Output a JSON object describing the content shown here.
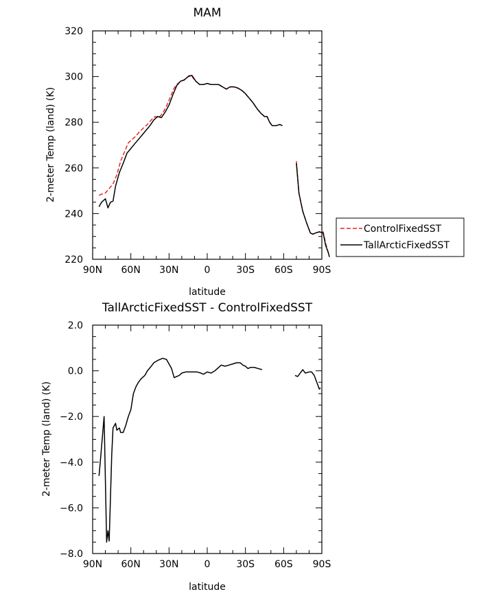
{
  "chart_data": [
    {
      "type": "line",
      "title": "MAM",
      "xlabel": "latitude",
      "ylabel": "2-meter Temp (land) (K)",
      "xlim": [
        90,
        -90
      ],
      "ylim": [
        220,
        320
      ],
      "xticks": [
        90,
        60,
        30,
        0,
        -30,
        -60,
        -90
      ],
      "xtick_labels": [
        "90N",
        "60N",
        "30N",
        "0",
        "30S",
        "60S",
        "90S"
      ],
      "yticks": [
        220,
        240,
        260,
        280,
        300,
        320
      ],
      "ytick_labels": [
        "220",
        "240",
        "260",
        "280",
        "300",
        "320"
      ],
      "legend": {
        "position": "right",
        "entries": [
          "ControlFixedSST",
          "TallArcticFixedSST"
        ]
      },
      "series": [
        {
          "name": "ControlFixedSST",
          "color": "#e8251f",
          "dash": true,
          "segments": [
            [
              [
                85,
                248
              ],
              [
                83,
                248.5
              ],
              [
                80,
                249
              ],
              [
                77,
                251
              ],
              [
                74,
                253
              ],
              [
                71,
                257
              ],
              [
                68,
                263
              ],
              [
                65,
                267
              ],
              [
                62,
                271
              ],
              [
                59,
                272.5
              ],
              [
                56,
                274
              ],
              [
                53,
                276
              ],
              [
                50,
                277.5
              ],
              [
                47,
                279
              ],
              [
                44,
                281
              ],
              [
                41,
                282.5
              ],
              [
                38,
                282
              ],
              [
                35,
                284
              ],
              [
                32,
                287
              ],
              [
                29,
                291
              ],
              [
                26,
                295
              ],
              [
                23,
                297
              ],
              [
                20,
                298
              ],
              [
                17,
                299
              ],
              [
                14,
                300.5
              ],
              [
                12,
                300
              ],
              [
                9,
                298
              ],
              [
                6,
                296.5
              ],
              [
                3,
                296.5
              ],
              [
                0,
                297
              ],
              [
                -3,
                296.5
              ],
              [
                -6,
                296.5
              ],
              [
                -9,
                296.5
              ],
              [
                -12,
                295.5
              ],
              [
                -15,
                294.5
              ],
              [
                -18,
                295.5
              ],
              [
                -21,
                295.5
              ],
              [
                -24,
                295
              ],
              [
                -27,
                294
              ],
              [
                -30,
                292.5
              ],
              [
                -33,
                290.5
              ],
              [
                -36,
                288.5
              ],
              [
                -39,
                286
              ],
              [
                -42,
                284
              ],
              [
                -45,
                282.5
              ],
              [
                -47,
                282.5
              ],
              [
                -49,
                280
              ],
              [
                -51,
                278.5
              ],
              [
                -54,
                278.5
              ],
              [
                -57,
                279
              ],
              [
                -59,
                278.5
              ]
            ],
            [
              [
                -70,
                263
              ],
              [
                -72,
                249
              ],
              [
                -75,
                241
              ],
              [
                -78,
                236
              ],
              [
                -81,
                231.5
              ],
              [
                -83,
                231
              ],
              [
                -85,
                231.5
              ],
              [
                -88,
                232
              ],
              [
                -91,
                232
              ],
              [
                -93,
                227
              ],
              [
                -95,
                223
              ],
              [
                -96,
                222
              ]
            ]
          ]
        },
        {
          "name": "TallArcticFixedSST",
          "color": "#000000",
          "dash": false,
          "segments": [
            [
              [
                85,
                243
              ],
              [
                83,
                245
              ],
              [
                80,
                246.5
              ],
              [
                78,
                242.5
              ],
              [
                76,
                245
              ],
              [
                74,
                245.5
              ],
              [
                72,
                252
              ],
              [
                69,
                258
              ],
              [
                66,
                262
              ],
              [
                63,
                266.5
              ],
              [
                60,
                268.5
              ],
              [
                57,
                270.5
              ],
              [
                54,
                272.5
              ],
              [
                51,
                274.5
              ],
              [
                48,
                276.5
              ],
              [
                45,
                278.5
              ],
              [
                42,
                281
              ],
              [
                39,
                282.5
              ],
              [
                36,
                282
              ],
              [
                33,
                284.5
              ],
              [
                30,
                287.5
              ],
              [
                27,
                292
              ],
              [
                24,
                296
              ],
              [
                21,
                298
              ],
              [
                18,
                298.5
              ],
              [
                15,
                300
              ],
              [
                12,
                300.5
              ],
              [
                9,
                298
              ],
              [
                6,
                296.5
              ],
              [
                3,
                296.5
              ],
              [
                0,
                297
              ],
              [
                -3,
                296.5
              ],
              [
                -6,
                296.5
              ],
              [
                -9,
                296.5
              ],
              [
                -12,
                295.5
              ],
              [
                -15,
                294.5
              ],
              [
                -18,
                295.5
              ],
              [
                -21,
                295.5
              ],
              [
                -24,
                295
              ],
              [
                -27,
                294
              ],
              [
                -30,
                292.5
              ],
              [
                -33,
                290.5
              ],
              [
                -36,
                288.5
              ],
              [
                -39,
                286
              ],
              [
                -42,
                284
              ],
              [
                -45,
                282.5
              ],
              [
                -47,
                282.5
              ],
              [
                -49,
                280
              ],
              [
                -51,
                278.5
              ],
              [
                -54,
                278.5
              ],
              [
                -57,
                279
              ],
              [
                -59,
                278.5
              ]
            ],
            [
              [
                -70,
                262
              ],
              [
                -72,
                249
              ],
              [
                -75,
                241
              ],
              [
                -78,
                236
              ],
              [
                -81,
                231.5
              ],
              [
                -83,
                231
              ],
              [
                -85,
                231.5
              ],
              [
                -88,
                232
              ],
              [
                -91,
                231.5
              ],
              [
                -93,
                226
              ],
              [
                -95,
                223
              ],
              [
                -96,
                221
              ]
            ]
          ]
        }
      ]
    },
    {
      "type": "line",
      "title": "TallArcticFixedSST - ControlFixedSST",
      "xlabel": "latitude",
      "ylabel": "2-meter Temp (land) (K)",
      "xlim": [
        90,
        -90
      ],
      "ylim": [
        -8,
        2
      ],
      "xticks": [
        90,
        60,
        30,
        0,
        -30,
        -60,
        -90
      ],
      "xtick_labels": [
        "90N",
        "60N",
        "30N",
        "0",
        "30S",
        "60S",
        "90S"
      ],
      "yticks": [
        -8,
        -6,
        -4,
        -2,
        0,
        2
      ],
      "ytick_labels": [
        "−8.0",
        "−6.0",
        "−4.0",
        "−2.0",
        "0.0",
        "2.0"
      ],
      "series": [
        {
          "name": "TallArcticFixedSST - ControlFixedSST",
          "color": "#000000",
          "dash": false,
          "segments": [
            [
              [
                85,
                -4.6
              ],
              [
                84,
                -4.0
              ],
              [
                81,
                -2.0
              ],
              [
                79,
                -7.5
              ],
              [
                78,
                -7.0
              ],
              [
                77,
                -7.45
              ],
              [
                75,
                -3.7
              ],
              [
                74,
                -2.5
              ],
              [
                72,
                -2.3
              ],
              [
                71,
                -2.6
              ],
              [
                69,
                -2.5
              ],
              [
                68,
                -2.7
              ],
              [
                66,
                -2.7
              ],
              [
                64,
                -2.4
              ],
              [
                62,
                -2.0
              ],
              [
                60,
                -1.7
              ],
              [
                58,
                -1.0
              ],
              [
                56,
                -0.7
              ],
              [
                54,
                -0.5
              ],
              [
                52,
                -0.35
              ],
              [
                49,
                -0.2
              ],
              [
                47,
                0.0
              ],
              [
                44,
                0.2
              ],
              [
                42,
                0.35
              ],
              [
                39,
                0.45
              ],
              [
                35,
                0.55
              ],
              [
                32,
                0.5
              ],
              [
                30,
                0.3
              ],
              [
                28,
                0.1
              ],
              [
                26,
                -0.3
              ],
              [
                24,
                -0.25
              ],
              [
                22,
                -0.2
              ],
              [
                20,
                -0.1
              ],
              [
                17,
                -0.05
              ],
              [
                14,
                -0.05
              ],
              [
                11,
                -0.05
              ],
              [
                8,
                -0.05
              ],
              [
                5,
                -0.1
              ],
              [
                3,
                -0.15
              ],
              [
                0,
                -0.05
              ],
              [
                -3,
                -0.1
              ],
              [
                -6,
                0.0
              ],
              [
                -8,
                0.1
              ],
              [
                -11,
                0.25
              ],
              [
                -14,
                0.2
              ],
              [
                -17,
                0.25
              ],
              [
                -20,
                0.3
              ],
              [
                -23,
                0.35
              ],
              [
                -26,
                0.35
              ],
              [
                -28,
                0.25
              ],
              [
                -30,
                0.2
              ],
              [
                -32,
                0.1
              ],
              [
                -34,
                0.15
              ],
              [
                -37,
                0.15
              ],
              [
                -40,
                0.1
              ],
              [
                -43,
                0.05
              ]
            ],
            [
              [
                -69,
                -0.2
              ],
              [
                -71,
                -0.25
              ],
              [
                -73,
                -0.1
              ],
              [
                -75,
                0.05
              ],
              [
                -77,
                -0.1
              ],
              [
                -80,
                -0.05
              ],
              [
                -82,
                -0.05
              ],
              [
                -84,
                -0.2
              ],
              [
                -86,
                -0.5
              ],
              [
                -88,
                -0.8
              ],
              [
                -89,
                -0.75
              ]
            ]
          ]
        }
      ]
    }
  ]
}
